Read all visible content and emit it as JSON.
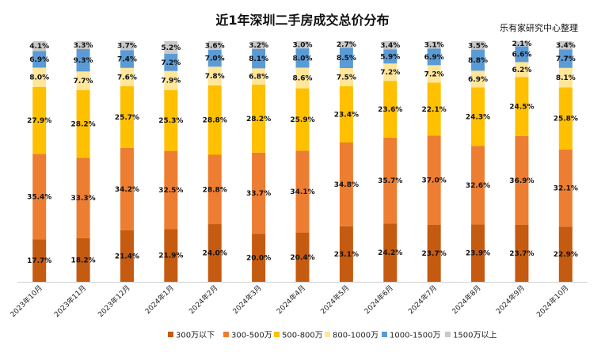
{
  "title": "近1年深圳二手房成交总价分布",
  "source": "乐有家研究中心整理",
  "chart_data": {
    "type": "bar",
    "stacked": true,
    "percent_stacked": true,
    "categories": [
      "2023年10月",
      "2023年11月",
      "2023年12月",
      "2024年1月",
      "2024年2月",
      "2024年3月",
      "2024年4月",
      "2024年5月",
      "2024年6月",
      "2024年7月",
      "2024年8月",
      "2024年9月",
      "2024年10月"
    ],
    "series": [
      {
        "name": "300万以下",
        "color": "#c55a11",
        "values": [
          17.7,
          18.2,
          21.4,
          21.9,
          24.0,
          20.0,
          20.4,
          23.1,
          24.2,
          23.7,
          23.9,
          23.7,
          22.9
        ]
      },
      {
        "name": "300-500万",
        "color": "#ed7d31",
        "values": [
          35.4,
          33.3,
          34.2,
          32.5,
          28.8,
          33.7,
          34.1,
          34.8,
          35.7,
          37.0,
          32.6,
          36.9,
          32.1
        ]
      },
      {
        "name": "500-800万",
        "color": "#ffc000",
        "values": [
          27.9,
          28.2,
          25.7,
          25.3,
          28.8,
          28.2,
          25.9,
          23.4,
          23.6,
          22.1,
          24.3,
          24.5,
          25.8
        ]
      },
      {
        "name": "800-1000万",
        "color": "#ffe699",
        "values": [
          8.0,
          7.7,
          7.6,
          7.9,
          7.8,
          6.8,
          8.6,
          7.5,
          7.2,
          7.2,
          6.9,
          6.2,
          8.1
        ]
      },
      {
        "name": "1000-1500万",
        "color": "#5b9bd5",
        "values": [
          6.9,
          9.3,
          7.4,
          7.2,
          7.0,
          8.1,
          8.0,
          8.5,
          5.9,
          6.9,
          8.8,
          6.6,
          7.7
        ]
      },
      {
        "name": "1500万以上",
        "color": "#c9c9c9",
        "values": [
          4.1,
          3.3,
          3.7,
          5.2,
          3.6,
          3.2,
          3.0,
          2.7,
          3.4,
          3.1,
          3.5,
          2.1,
          3.4
        ]
      }
    ],
    "value_suffix": "%",
    "legend_position": "bottom",
    "grid": false
  }
}
